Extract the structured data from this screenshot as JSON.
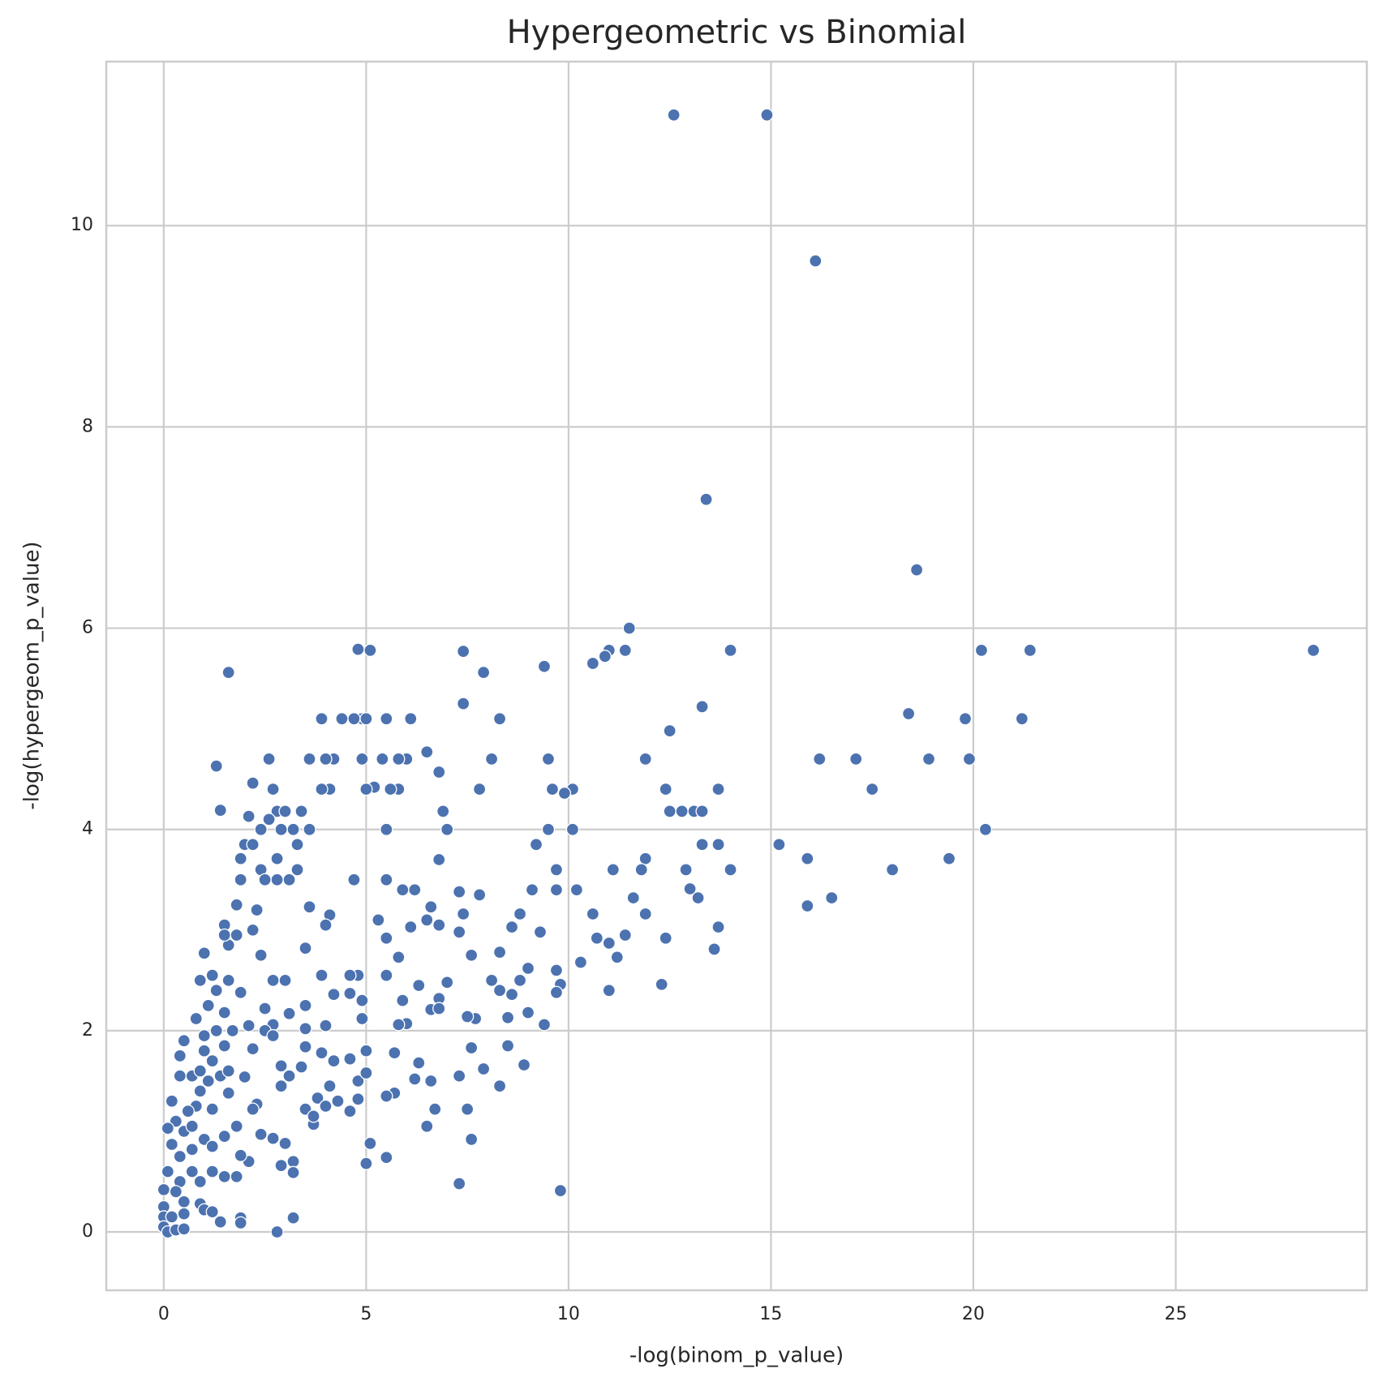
{
  "chart_data": {
    "type": "scatter",
    "title": "Hypergeometric vs Binomial",
    "x_label": "-log(binom_p_value)",
    "y_label": "-log(hypergeom_p_value)",
    "color": "#4c72b0",
    "grid": true,
    "xlim": [
      -1.42,
      29.72
    ],
    "ylim": [
      -0.58,
      11.63
    ],
    "xticks": [
      0,
      5,
      10,
      15,
      20,
      25
    ],
    "yticks": [
      0,
      2,
      4,
      6,
      8,
      10
    ],
    "x": [
      12.6,
      14.9,
      16.1,
      13.4,
      18.6,
      28.4,
      21.4,
      20.2,
      14.0,
      11.5,
      11.4,
      11.0,
      10.9,
      10.6,
      9.4,
      7.9,
      7.4,
      7.4,
      5.1,
      4.8,
      1.6,
      13.3,
      18.4,
      19.8,
      21.2,
      12.5,
      8.3,
      6.1,
      5.5,
      4.9,
      4.7,
      4.4,
      3.9,
      5.0,
      16.2,
      17.1,
      18.9,
      19.9,
      11.9,
      9.5,
      8.1,
      6.0,
      5.8,
      5.4,
      4.9,
      4.2,
      4.0,
      3.6,
      2.6,
      1.3,
      6.5,
      6.8,
      17.5,
      13.7,
      12.4,
      10.1,
      9.6,
      9.9,
      7.8,
      5.8,
      5.6,
      5.2,
      5.0,
      4.1,
      3.9,
      2.7,
      2.2,
      1.4,
      2.1,
      2.8,
      3.0,
      3.4,
      6.9,
      12.5,
      12.8,
      13.1,
      13.3,
      20.3,
      10.1,
      9.5,
      7.0,
      5.5,
      3.6,
      3.2,
      2.9,
      2.4,
      2.6,
      15.2,
      13.3,
      13.7,
      9.2,
      3.3,
      2.0,
      2.2,
      19.4,
      15.9,
      11.9,
      6.8,
      2.8,
      1.9,
      18.0,
      14.0,
      12.9,
      11.8,
      11.1,
      9.7,
      3.3,
      2.4,
      16.5,
      15.9,
      13.2,
      13.0,
      11.6,
      10.2,
      9.7,
      9.1,
      7.8,
      7.3,
      6.2,
      5.9,
      5.5,
      4.7,
      3.1,
      2.8,
      2.5,
      1.9,
      1.8,
      2.3,
      3.6,
      4.1,
      6.6,
      10.6,
      11.9,
      8.8,
      7.4,
      6.5,
      6.8,
      6.1,
      5.3,
      4.0,
      3.5,
      2.2,
      1.5,
      1.6,
      9.3,
      12.4,
      11.4,
      13.7,
      13.6,
      10.7,
      11.0,
      11.2,
      10.3,
      8.3,
      7.6,
      5.8,
      5.5,
      8.6,
      7.3,
      12.3,
      11.0,
      9.7,
      9.0,
      8.8,
      8.1,
      7.0,
      6.3,
      5.5,
      4.8,
      4.6,
      3.9,
      3.0,
      2.7,
      2.4,
      1.6,
      1.2,
      0.9,
      1.0,
      9.8,
      9.7,
      8.6,
      8.3,
      7.7,
      6.8,
      6.6,
      5.9,
      4.9,
      4.6,
      4.2,
      3.5,
      3.1,
      2.5,
      1.9,
      1.5,
      1.1,
      0.8,
      9.0,
      9.4,
      8.5,
      7.5,
      6.8,
      6.0,
      5.8,
      4.9,
      4.0,
      3.5,
      2.7,
      2.5,
      2.1,
      1.7,
      1.3,
      1.0,
      0.5,
      0.4,
      0.7,
      1.0,
      1.5,
      2.2,
      2.7,
      3.5,
      3.9,
      4.2,
      4.6,
      5.0,
      5.7,
      6.3,
      7.6,
      7.9,
      8.5,
      8.9,
      8.3,
      7.3,
      6.6,
      6.2,
      5.7,
      5.5,
      4.8,
      4.3,
      3.8,
      3.5,
      2.9,
      2.3,
      1.6,
      1.2,
      0.8,
      0.4,
      0.2,
      0.3,
      0.5,
      0.1,
      0.2,
      0.4,
      0.7,
      1.0,
      1.2,
      1.5,
      1.8,
      2.4,
      2.7,
      3.0,
      3.7,
      4.0,
      4.6,
      6.5,
      6.7,
      7.5,
      7.6,
      5.1,
      5.5,
      5.0,
      7.3,
      9.8,
      3.2,
      3.2,
      2.9,
      2.1,
      1.9,
      1.8,
      1.5,
      1.2,
      0.9,
      0.4,
      0.5,
      0.3,
      0.1,
      0.0,
      0.0,
      0.0,
      0.0,
      0.1,
      0.3,
      0.5,
      0.5,
      0.9,
      1.0,
      1.2,
      1.4,
      1.9,
      1.9,
      2.8,
      3.2,
      0.2,
      0.7,
      1.3,
      1.5,
      1.8,
      1.4,
      1.1,
      0.9,
      0.6,
      0.7,
      0.9,
      1.2,
      1.6,
      2.0,
      2.9,
      3.1,
      3.4,
      4.1,
      4.8,
      5.0,
      3.7,
      2.2
    ],
    "values": [
      11.1,
      11.1,
      9.65,
      7.28,
      6.58,
      5.78,
      5.78,
      5.78,
      5.78,
      6.0,
      5.78,
      5.78,
      5.72,
      5.65,
      5.62,
      5.56,
      5.77,
      5.25,
      5.78,
      5.79,
      5.56,
      5.22,
      5.15,
      5.1,
      5.1,
      4.98,
      5.1,
      5.1,
      5.1,
      5.1,
      5.1,
      5.1,
      5.1,
      5.1,
      4.7,
      4.7,
      4.7,
      4.7,
      4.7,
      4.7,
      4.7,
      4.7,
      4.7,
      4.7,
      4.7,
      4.7,
      4.7,
      4.7,
      4.7,
      4.63,
      4.77,
      4.57,
      4.4,
      4.4,
      4.4,
      4.4,
      4.4,
      4.36,
      4.4,
      4.4,
      4.4,
      4.42,
      4.4,
      4.4,
      4.4,
      4.4,
      4.46,
      4.19,
      4.13,
      4.18,
      4.18,
      4.18,
      4.18,
      4.18,
      4.18,
      4.18,
      4.18,
      4.0,
      4.0,
      4.0,
      4.0,
      4.0,
      4.0,
      4.0,
      4.0,
      4.0,
      4.1,
      3.85,
      3.85,
      3.85,
      3.85,
      3.85,
      3.85,
      3.85,
      3.71,
      3.71,
      3.71,
      3.7,
      3.71,
      3.71,
      3.6,
      3.6,
      3.6,
      3.6,
      3.6,
      3.6,
      3.6,
      3.6,
      3.32,
      3.24,
      3.32,
      3.41,
      3.32,
      3.4,
      3.4,
      3.4,
      3.35,
      3.38,
      3.4,
      3.4,
      3.5,
      3.5,
      3.5,
      3.5,
      3.5,
      3.5,
      3.25,
      3.2,
      3.23,
      3.15,
      3.23,
      3.16,
      3.16,
      3.16,
      3.16,
      3.1,
      3.05,
      3.03,
      3.1,
      3.05,
      2.82,
      3.0,
      3.05,
      2.85,
      2.98,
      2.92,
      2.95,
      3.03,
      2.81,
      2.92,
      2.87,
      2.73,
      2.68,
      2.78,
      2.75,
      2.73,
      2.92,
      3.03,
      2.98,
      2.46,
      2.4,
      2.6,
      2.62,
      2.5,
      2.5,
      2.48,
      2.45,
      2.55,
      2.55,
      2.55,
      2.55,
      2.5,
      2.5,
      2.75,
      2.5,
      2.55,
      2.5,
      2.77,
      2.46,
      2.38,
      2.36,
      2.4,
      2.12,
      2.32,
      2.21,
      2.3,
      2.3,
      2.37,
      2.36,
      2.25,
      2.17,
      2.22,
      2.38,
      2.18,
      2.25,
      2.12,
      2.18,
      2.06,
      2.13,
      2.14,
      2.22,
      2.07,
      2.06,
      2.12,
      2.05,
      2.02,
      2.06,
      2.0,
      2.05,
      2.0,
      2.0,
      1.95,
      1.9,
      1.75,
      1.55,
      1.8,
      1.85,
      1.82,
      1.95,
      1.84,
      1.78,
      1.7,
      1.72,
      1.8,
      1.78,
      1.68,
      1.83,
      1.62,
      1.85,
      1.66,
      1.45,
      1.55,
      1.5,
      1.52,
      1.38,
      1.35,
      1.32,
      1.3,
      1.33,
      1.22,
      1.45,
      1.27,
      1.38,
      1.22,
      1.25,
      1.55,
      1.3,
      1.1,
      1.0,
      1.03,
      0.87,
      0.75,
      0.82,
      0.92,
      0.85,
      0.95,
      1.05,
      0.97,
      0.93,
      0.88,
      1.07,
      1.25,
      1.2,
      1.05,
      1.22,
      1.22,
      0.92,
      0.88,
      0.74,
      0.68,
      0.48,
      0.41,
      0.7,
      0.59,
      0.66,
      0.7,
      0.76,
      0.55,
      0.55,
      0.6,
      0.5,
      0.5,
      0.3,
      0.4,
      0.6,
      0.42,
      0.25,
      0.15,
      0.05,
      0.0,
      0.02,
      0.03,
      0.18,
      0.28,
      0.22,
      0.2,
      0.1,
      0.14,
      0.09,
      0.0,
      0.14,
      0.15,
      0.6,
      2.4,
      2.95,
      2.95,
      1.55,
      1.5,
      1.6,
      1.2,
      1.05,
      1.4,
      1.7,
      1.6,
      1.54,
      1.65,
      1.55,
      1.64,
      1.45,
      1.5,
      1.58,
      1.15,
      1.22
    ]
  }
}
